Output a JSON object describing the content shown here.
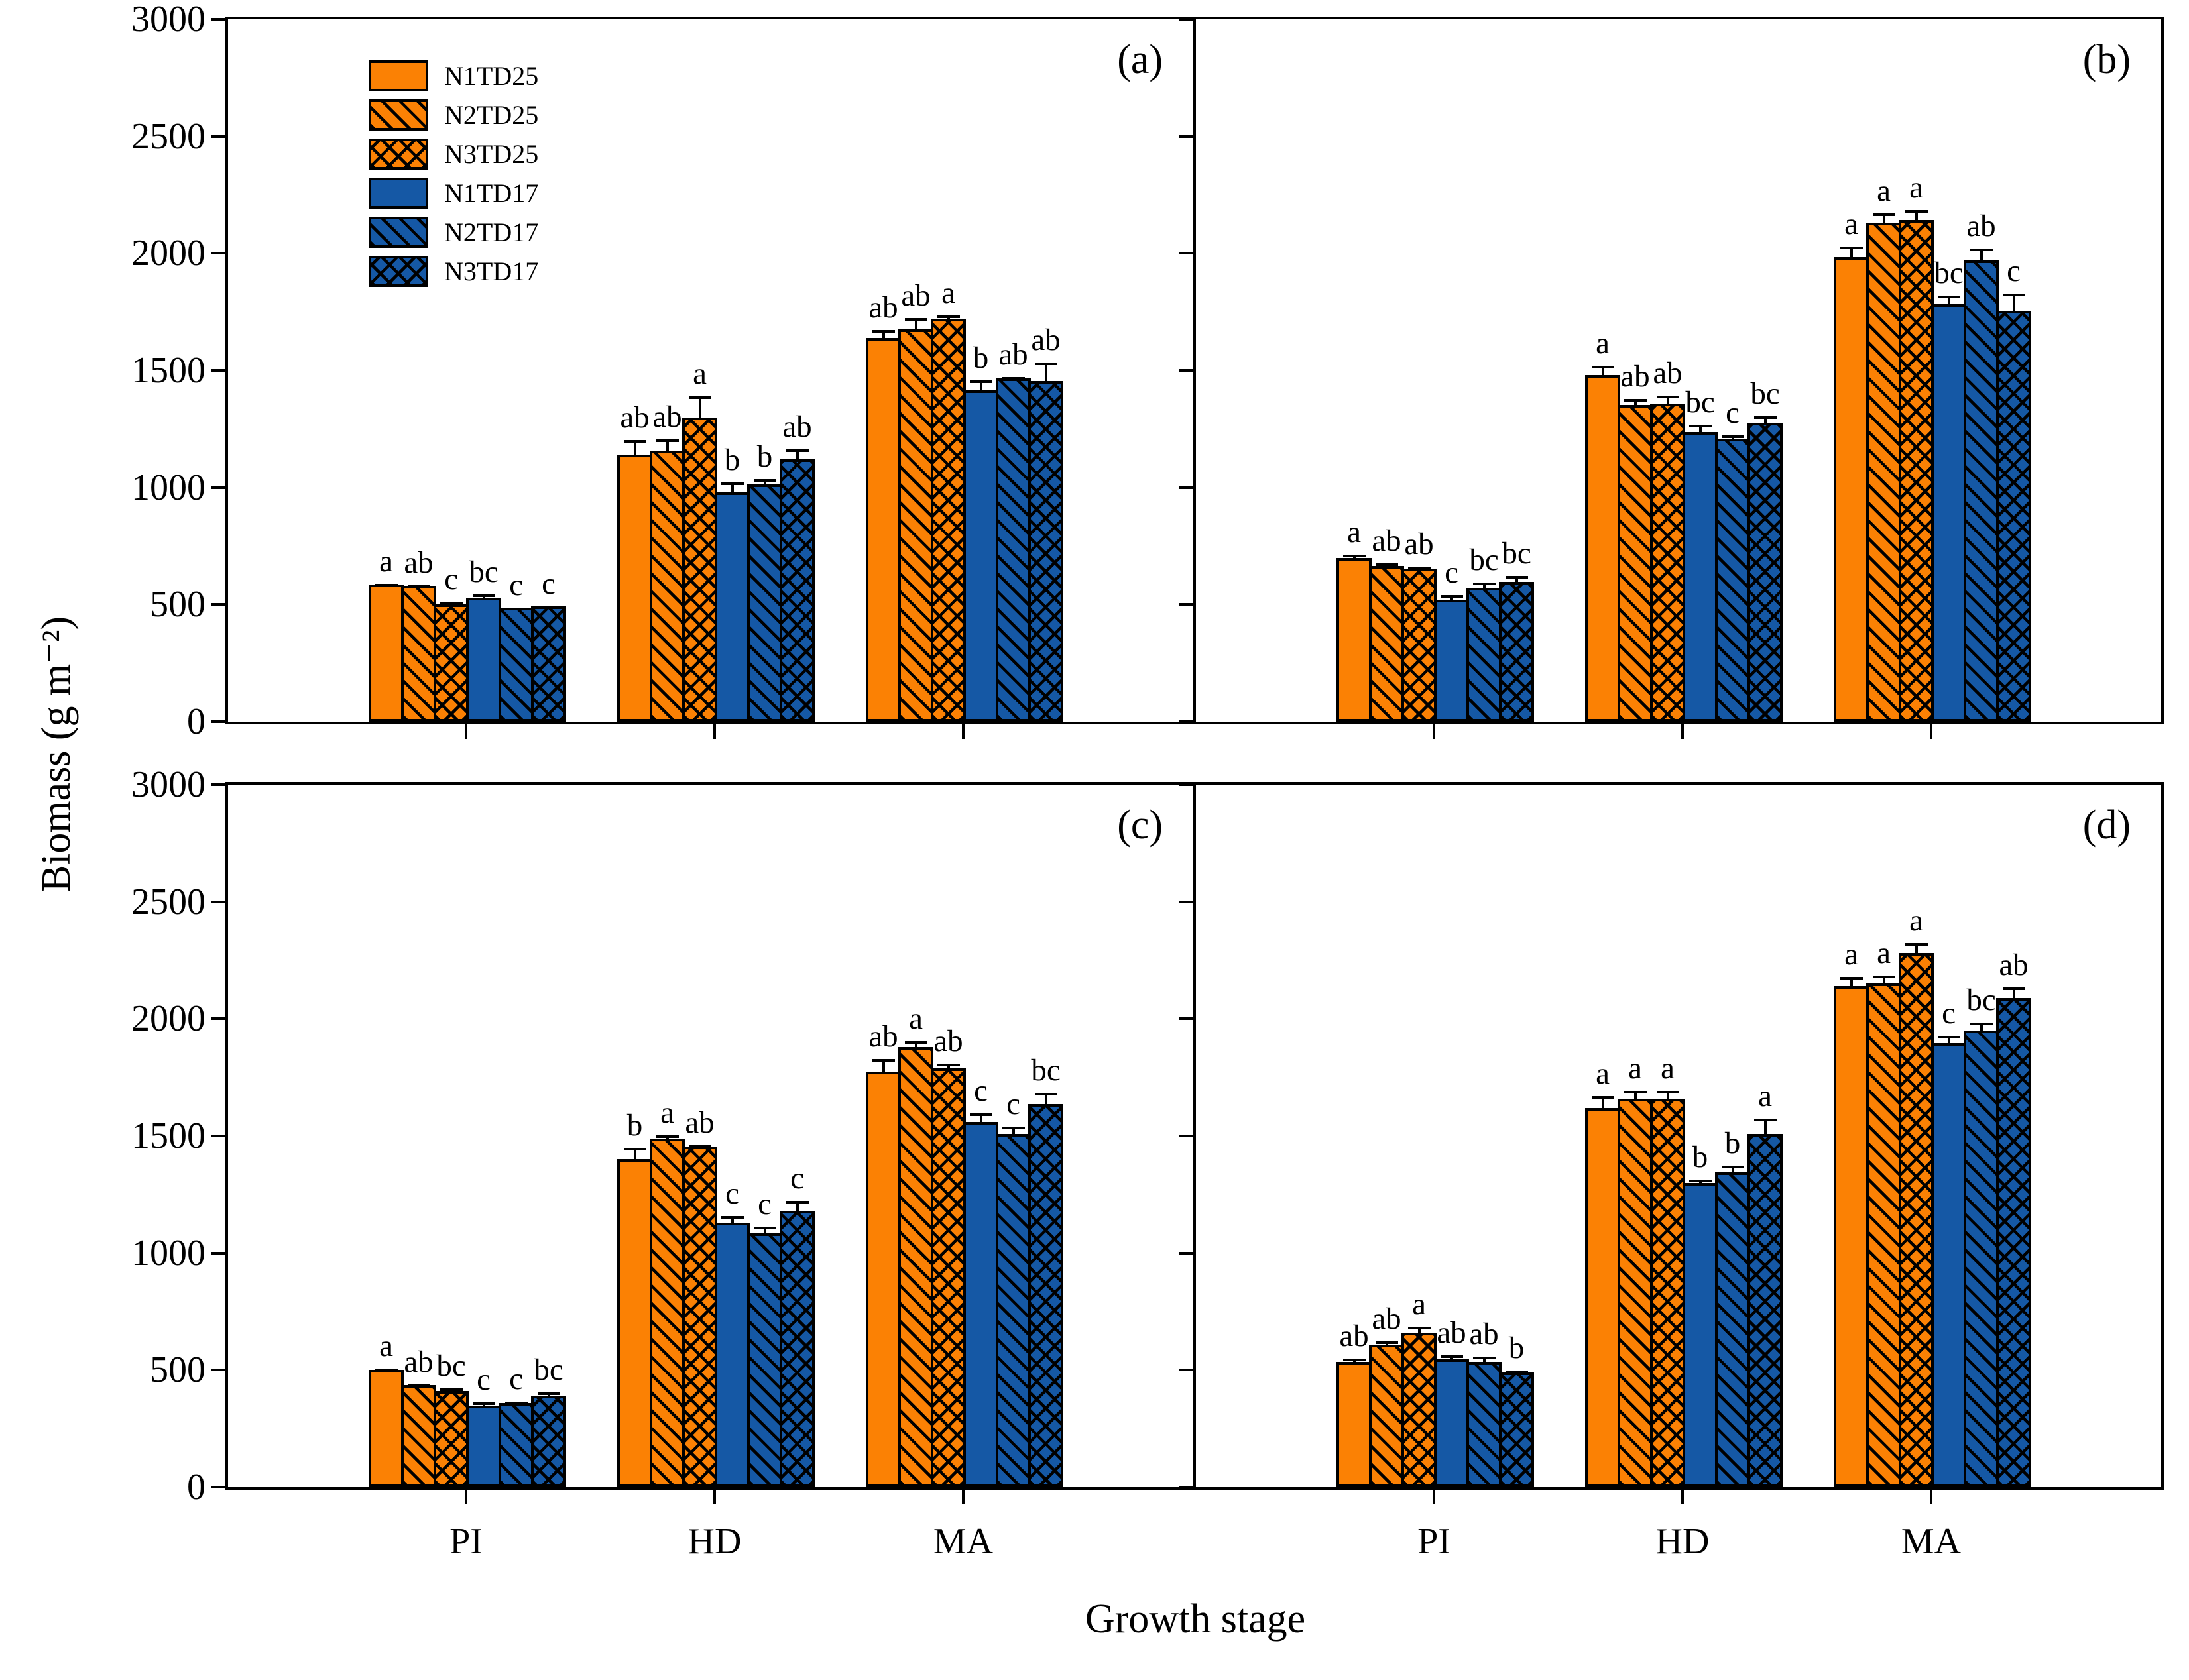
{
  "figure": {
    "background": "#ffffff"
  },
  "colors": {
    "orange": "#FB8104",
    "blue": "#1558A5",
    "outline": "#000000"
  },
  "axes": {
    "y_label": "Biomass (g m⁻²)",
    "x_label": "Growth stage",
    "y_ticks": [
      0,
      500,
      1000,
      1500,
      2000,
      2500,
      3000
    ],
    "y_max": 3000,
    "x_tick_labels": [
      "PI",
      "HD",
      "MA"
    ]
  },
  "legend": {
    "entries": [
      {
        "label": "N1TD25",
        "color": "orange",
        "pattern": "solid"
      },
      {
        "label": "N2TD25",
        "color": "orange",
        "pattern": "diag"
      },
      {
        "label": "N3TD25",
        "color": "orange",
        "pattern": "cross"
      },
      {
        "label": "N1TD17",
        "color": "blue",
        "pattern": "solid"
      },
      {
        "label": "N2TD17",
        "color": "blue",
        "pattern": "diag"
      },
      {
        "label": "N3TD17",
        "color": "blue",
        "pattern": "cross"
      }
    ]
  },
  "chart_data": {
    "type": "bar",
    "categories": [
      "PI",
      "HD",
      "MA"
    ],
    "ylim": [
      0,
      3000
    ],
    "legend_position": "top-left-panel-a",
    "grid": false,
    "panels": [
      {
        "label": "(a)",
        "series": [
          {
            "name": "N1TD25",
            "color": "orange",
            "pattern": "solid",
            "values": [
              585,
              1140,
              1640
            ],
            "errors": [
              15,
              75,
              45
            ],
            "letters": [
              "a",
              "ab",
              "ab"
            ]
          },
          {
            "name": "N2TD25",
            "color": "orange",
            "pattern": "diag",
            "values": [
              580,
              1158,
              1675
            ],
            "errors": [
              15,
              60,
              60
            ],
            "letters": [
              "ab",
              "ab",
              "ab"
            ]
          },
          {
            "name": "N3TD25",
            "color": "orange",
            "pattern": "cross",
            "values": [
              500,
              1300,
              1722
            ],
            "errors": [
              25,
              100,
              25
            ],
            "letters": [
              "c",
              "a",
              "a"
            ]
          },
          {
            "name": "N1TD17",
            "color": "blue",
            "pattern": "solid",
            "values": [
              530,
              978,
              1415
            ],
            "errors": [
              25,
              55,
              55
            ],
            "letters": [
              "bc",
              "b",
              "b"
            ]
          },
          {
            "name": "N2TD17",
            "color": "blue",
            "pattern": "diag",
            "values": [
              487,
              1012,
              1465
            ],
            "errors": [
              12,
              35,
              18
            ],
            "letters": [
              "c",
              "b",
              "ab"
            ]
          },
          {
            "name": "N3TD17",
            "color": "blue",
            "pattern": "cross",
            "values": [
              492,
              1120,
              1455
            ],
            "errors": [
              12,
              55,
              90
            ],
            "letters": [
              "c",
              "ab",
              "ab"
            ]
          }
        ]
      },
      {
        "label": "(b)",
        "series": [
          {
            "name": "N1TD25",
            "color": "orange",
            "pattern": "solid",
            "values": [
              698,
              1480,
              1985
            ],
            "errors": [
              28,
              52,
              55
            ],
            "letters": [
              "a",
              "a",
              "a"
            ]
          },
          {
            "name": "N2TD25",
            "color": "orange",
            "pattern": "diag",
            "values": [
              665,
              1352,
              2130
            ],
            "errors": [
              22,
              38,
              52
            ],
            "letters": [
              "ab",
              "ab",
              "a"
            ]
          },
          {
            "name": "N3TD25",
            "color": "orange",
            "pattern": "cross",
            "values": [
              655,
              1360,
              2142
            ],
            "errors": [
              18,
              45,
              55
            ],
            "letters": [
              "ab",
              "ab",
              "a"
            ]
          },
          {
            "name": "N1TD17",
            "color": "blue",
            "pattern": "solid",
            "values": [
              520,
              1237,
              1782
            ],
            "errors": [
              32,
              42,
              48
            ],
            "letters": [
              "c",
              "bc",
              "bc"
            ]
          },
          {
            "name": "N2TD17",
            "color": "blue",
            "pattern": "diag",
            "values": [
              572,
              1208,
              1970
            ],
            "errors": [
              35,
              25,
              62
            ],
            "letters": [
              "bc",
              "c",
              "ab"
            ]
          },
          {
            "name": "N3TD17",
            "color": "blue",
            "pattern": "cross",
            "values": [
              598,
              1277,
              1755
            ],
            "errors": [
              35,
              38,
              85
            ],
            "letters": [
              "bc",
              "bc",
              "c"
            ]
          }
        ]
      },
      {
        "label": "(c)",
        "series": [
          {
            "name": "N1TD25",
            "color": "orange",
            "pattern": "solid",
            "values": [
              500,
              1400,
              1775
            ],
            "errors": [
              18,
              60,
              65
            ],
            "letters": [
              "a",
              "b",
              "ab"
            ]
          },
          {
            "name": "N2TD25",
            "color": "orange",
            "pattern": "diag",
            "values": [
              437,
              1490,
              1880
            ],
            "errors": [
              12,
              25,
              35
            ],
            "letters": [
              "ab",
              "a",
              "a"
            ]
          },
          {
            "name": "N3TD25",
            "color": "orange",
            "pattern": "cross",
            "values": [
              410,
              1455,
              1790
            ],
            "errors": [
              22,
              18,
              30
            ],
            "letters": [
              "bc",
              "ab",
              "ab"
            ]
          },
          {
            "name": "N1TD17",
            "color": "blue",
            "pattern": "solid",
            "values": [
              347,
              1130,
              1560
            ],
            "errors": [
              28,
              40,
              48
            ],
            "letters": [
              "c",
              "c",
              "c"
            ]
          },
          {
            "name": "N2TD17",
            "color": "blue",
            "pattern": "diag",
            "values": [
              359,
              1085,
              1510
            ],
            "errors": [
              18,
              40,
              42
            ],
            "letters": [
              "c",
              "c",
              "c"
            ]
          },
          {
            "name": "N3TD17",
            "color": "blue",
            "pattern": "cross",
            "values": [
              392,
              1180,
              1635
            ],
            "errors": [
              25,
              55,
              60
            ],
            "letters": [
              "bc",
              "c",
              "bc"
            ]
          }
        ]
      },
      {
        "label": "(d)",
        "series": [
          {
            "name": "N1TD25",
            "color": "orange",
            "pattern": "solid",
            "values": [
              535,
              1620,
              2140
            ],
            "errors": [
              25,
              60,
              50
            ],
            "letters": [
              "ab",
              "a",
              "a"
            ]
          },
          {
            "name": "N2TD25",
            "color": "orange",
            "pattern": "diag",
            "values": [
              610,
              1660,
              2150
            ],
            "errors": [
              25,
              45,
              45
            ],
            "letters": [
              "ab",
              "a",
              "a"
            ]
          },
          {
            "name": "N3TD25",
            "color": "orange",
            "pattern": "cross",
            "values": [
              660,
              1660,
              2280
            ],
            "errors": [
              35,
              45,
              55
            ],
            "letters": [
              "a",
              "a",
              "a"
            ]
          },
          {
            "name": "N1TD17",
            "color": "blue",
            "pattern": "solid",
            "values": [
              545,
              1300,
              1895
            ],
            "errors": [
              30,
              25,
              45
            ],
            "letters": [
              "ab",
              "b",
              "c"
            ]
          },
          {
            "name": "N2TD17",
            "color": "blue",
            "pattern": "diag",
            "values": [
              535,
              1345,
              1950
            ],
            "errors": [
              35,
              40,
              45
            ],
            "letters": [
              "ab",
              "b",
              "bc"
            ]
          },
          {
            "name": "N3TD17",
            "color": "blue",
            "pattern": "cross",
            "values": [
              490,
              1510,
              2090
            ],
            "errors": [
              20,
              75,
              55
            ],
            "letters": [
              "b",
              "a",
              "ab"
            ]
          }
        ]
      }
    ]
  }
}
